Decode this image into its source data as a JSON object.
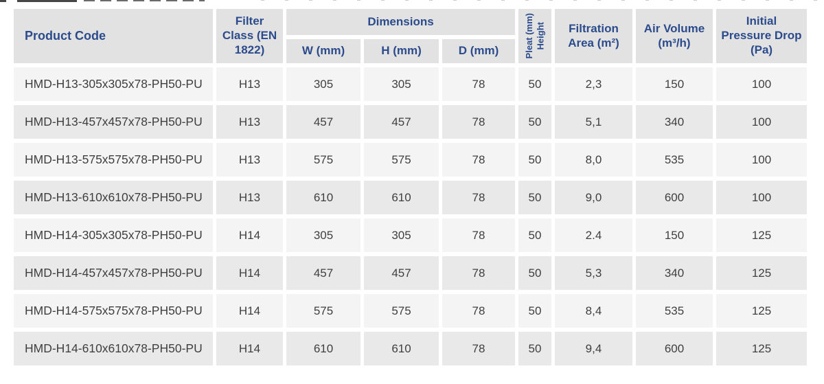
{
  "table": {
    "header": {
      "product_code": "Product Code",
      "filter_class": "Filter Class (EN 1822)",
      "dimensions": "Dimensions",
      "w": "W (mm)",
      "h": "H (mm)",
      "d": "D (mm)",
      "pleat_height_line1": "Pleat (mm)",
      "pleat_height_line2": "Height",
      "filtration_area": "Filtration Area (m²)",
      "air_volume": "Air Volume (m³/h)",
      "initial_pressure_drop": "Initial Pressure Drop (Pa)"
    },
    "rows": [
      {
        "product_code": "HMD-H13-305x305x78-PH50-PU",
        "filter_class": "H13",
        "w": "305",
        "h": "305",
        "d": "78",
        "pleat_height": "50",
        "filtration_area": "2,3",
        "air_volume": "150",
        "initial_pressure_drop": "100"
      },
      {
        "product_code": "HMD-H13-457x457x78-PH50-PU",
        "filter_class": "H13",
        "w": "457",
        "h": "457",
        "d": "78",
        "pleat_height": "50",
        "filtration_area": "5,1",
        "air_volume": "340",
        "initial_pressure_drop": "100"
      },
      {
        "product_code": "HMD-H13-575x575x78-PH50-PU",
        "filter_class": "H13",
        "w": "575",
        "h": "575",
        "d": "78",
        "pleat_height": "50",
        "filtration_area": "8,0",
        "air_volume": "535",
        "initial_pressure_drop": "100"
      },
      {
        "product_code": "HMD-H13-610x610x78-PH50-PU",
        "filter_class": "H13",
        "w": "610",
        "h": "610",
        "d": "78",
        "pleat_height": "50",
        "filtration_area": "9,0",
        "air_volume": "600",
        "initial_pressure_drop": "100"
      },
      {
        "product_code": "HMD-H14-305x305x78-PH50-PU",
        "filter_class": "H14",
        "w": "305",
        "h": "305",
        "d": "78",
        "pleat_height": "50",
        "filtration_area": "2.4",
        "air_volume": "150",
        "initial_pressure_drop": "125"
      },
      {
        "product_code": "HMD-H14-457x457x78-PH50-PU",
        "filter_class": "H14",
        "w": "457",
        "h": "457",
        "d": "78",
        "pleat_height": "50",
        "filtration_area": "5,3",
        "air_volume": "340",
        "initial_pressure_drop": "125"
      },
      {
        "product_code": "HMD-H14-575x575x78-PH50-PU",
        "filter_class": "H14",
        "w": "575",
        "h": "575",
        "d": "78",
        "pleat_height": "50",
        "filtration_area": "8,4",
        "air_volume": "535",
        "initial_pressure_drop": "125"
      },
      {
        "product_code": "HMD-H14-610x610x78-PH50-PU",
        "filter_class": "H14",
        "w": "610",
        "h": "610",
        "d": "78",
        "pleat_height": "50",
        "filtration_area": "9,4",
        "air_volume": "600",
        "initial_pressure_drop": "125"
      }
    ]
  },
  "colors": {
    "header_text": "#2b4b8c",
    "header_bg": "#e2e2e2",
    "row_odd_bg": "#f4f4f4",
    "row_even_bg": "#e9e9e9",
    "body_text": "#3f3f3f"
  }
}
